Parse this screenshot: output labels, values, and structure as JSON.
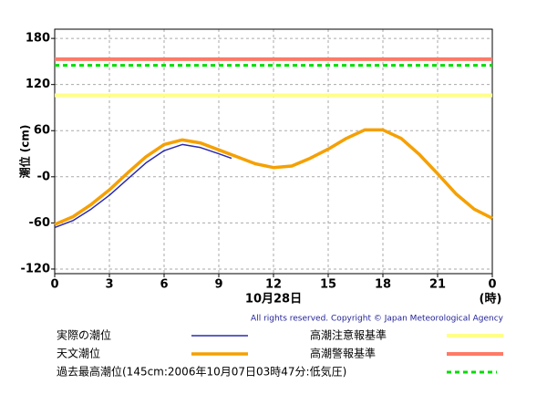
{
  "chart_data": {
    "type": "line",
    "y_label": "潮位 (cm)",
    "x_label": "10月28日",
    "x_unit": "(時)",
    "copyright": "All rights reserved. Copyright © Japan Meteorological Agency",
    "xlim": [
      0,
      24
    ],
    "xticks": [
      0,
      3,
      6,
      9,
      12,
      15,
      18,
      21,
      {
        "value": 24,
        "label": "0"
      }
    ],
    "ylim": [
      -126,
      192
    ],
    "yticks": [
      -120,
      -60,
      {
        "value": 0,
        "label": "-0"
      },
      60,
      120,
      180
    ],
    "grid": true,
    "series": [
      {
        "name": "実際の潮位",
        "color": "#2a2ab0",
        "width": 1.5,
        "x": [
          0,
          1,
          2,
          3,
          4,
          5,
          6,
          7,
          8,
          9,
          9.7
        ],
        "values": [
          -66,
          -57,
          -42,
          -24,
          -3,
          18,
          34,
          42,
          38,
          30,
          24
        ]
      },
      {
        "name": "天文潮位",
        "color": "#f5a000",
        "width": 3.5,
        "x": [
          0,
          1,
          2,
          3,
          4,
          5,
          6,
          7,
          8,
          9,
          10,
          11,
          12,
          13,
          14,
          15,
          16,
          17,
          18,
          19,
          20,
          21,
          22,
          23,
          24
        ],
        "values": [
          -62,
          -52,
          -36,
          -17,
          5,
          26,
          42,
          48,
          44,
          35,
          26,
          17,
          12,
          14,
          24,
          36,
          50,
          61,
          61,
          50,
          29,
          4,
          -22,
          -42,
          -54
        ]
      }
    ],
    "reference_lines": [
      {
        "name": "高潮注意報基準",
        "color": "#ffff88",
        "value": 106,
        "dashed": false
      },
      {
        "name": "高潮警報基準",
        "color": "#ff7a66",
        "value": 153,
        "dashed": false
      },
      {
        "name": "過去最高潮位(145cm:2006年10月07日03時47分:低気圧)",
        "color": "#00dd00",
        "value": 145,
        "dashed": true
      }
    ]
  }
}
